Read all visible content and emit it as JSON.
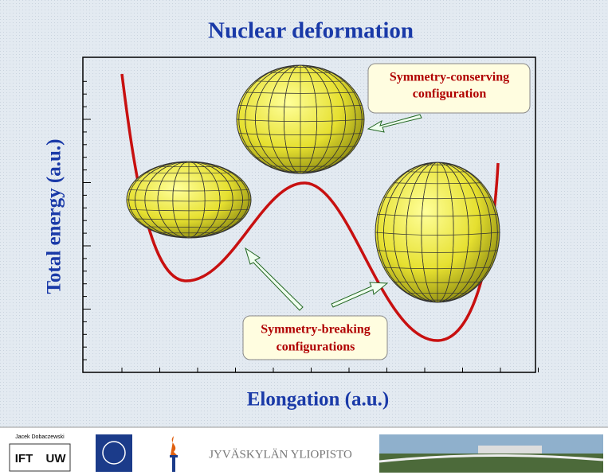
{
  "title": "Nuclear deformation",
  "y_label": "Total energy (a.u.)",
  "x_label": "Elongation (a.u.)",
  "callouts": [
    {
      "lines": [
        "Symmetry-conserving",
        "configuration"
      ]
    },
    {
      "lines": [
        "Symmetry-breaking",
        "configurations"
      ]
    }
  ],
  "footer": {
    "author": "Jacek Dobaczewski",
    "logo_left": "IFT",
    "logo_right": "UW",
    "university": "JYVÄSKYLÄN YLIOPISTO"
  }
}
